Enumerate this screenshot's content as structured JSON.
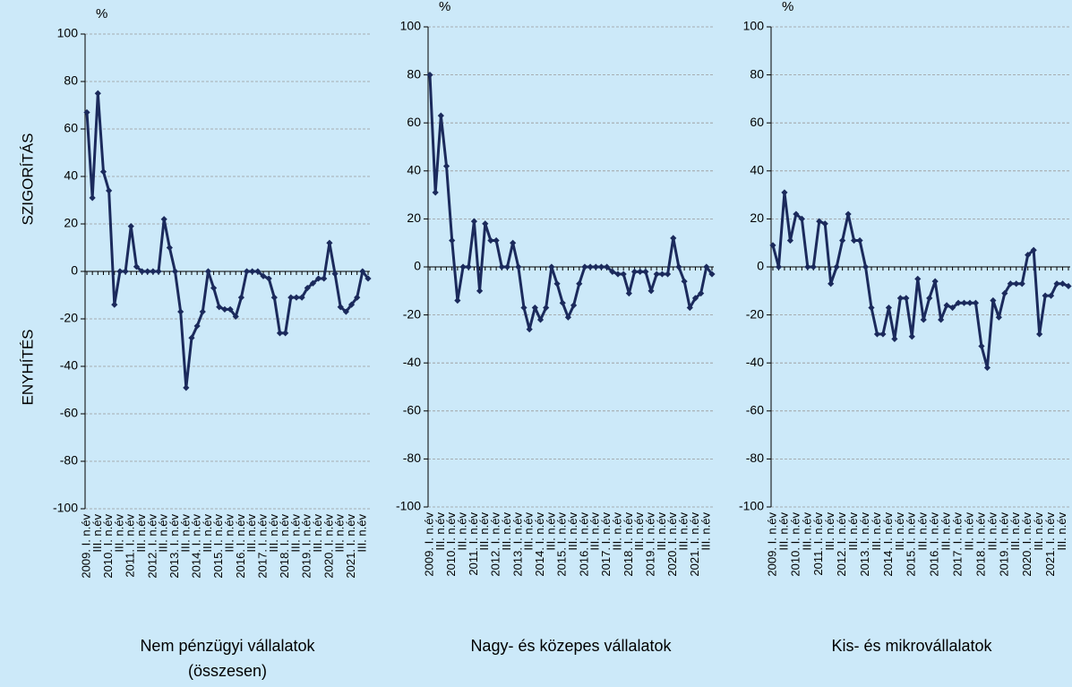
{
  "chart_data": [
    {
      "type": "line",
      "title": [
        "Nem pénzügyi vállalatok",
        "(összesen)"
      ],
      "y_label": "%",
      "annotations": [
        "SZIGORÍTÁS",
        "ENYHÍTÉS"
      ],
      "categories": [
        "2009. I. n.év",
        null,
        "III. n.év",
        null,
        "2010. I. n.év",
        null,
        "III. n.év",
        null,
        "2011. I. n.év",
        null,
        "III. n.év",
        null,
        "2012. I. n.év",
        null,
        "III. n.év",
        null,
        "2013. I. n.év",
        null,
        "III. n.év",
        null,
        "2014. I. n.év",
        null,
        "III. n.év",
        null,
        "2015. I. n.év",
        null,
        "III. n.év",
        null,
        "2016. I. n.év",
        null,
        "III. n.év",
        null,
        "2017. I. n.év",
        null,
        "III. n.év",
        null,
        "2018. I. n.év",
        null,
        "III. n.év",
        null,
        "2019. I. n.év",
        null,
        "III. n.év",
        null,
        "2020. I. n.év",
        null,
        "III. n.év",
        null,
        "2021. I. n.év",
        null,
        "III. n.év",
        null
      ],
      "series": [
        {
          "color": "#1b2a5c",
          "values": [
            67,
            31,
            75,
            42,
            34,
            -14,
            0,
            0,
            19,
            2,
            0,
            0,
            0,
            0,
            22,
            10,
            0,
            -17,
            -49,
            -28,
            -23,
            -17,
            0,
            -7,
            -15,
            -16,
            -16,
            -19,
            -11,
            0,
            0,
            0,
            -2,
            -3,
            -11,
            -26,
            -26,
            -11,
            -11,
            -11,
            -7,
            -5,
            -3,
            -3,
            12,
            -1,
            -15,
            -17,
            -14,
            -11,
            0,
            -3
          ]
        }
      ],
      "ylim": [
        -100,
        100
      ],
      "yticks": [
        -100,
        -80,
        -60,
        -40,
        -20,
        0,
        20,
        40,
        60,
        80,
        100
      ],
      "grid": true
    },
    {
      "type": "line",
      "title": [
        "Nagy- és közepes vállalatok"
      ],
      "y_label": "%",
      "categories": [
        "2009. I. n.év",
        null,
        "III. n.év",
        null,
        "2010. I. n.év",
        null,
        "III. n.év",
        null,
        "2011. I. n.év",
        null,
        "III. n.év",
        null,
        "2012. I. n.év",
        null,
        "III. n.év",
        null,
        "2013. I. n.év",
        null,
        "III. n.év",
        null,
        "2014. I. n.év",
        null,
        "III. n.év",
        null,
        "2015. I. n.év",
        null,
        "III. n.év",
        null,
        "2016. I. n.év",
        null,
        "III. n.év",
        null,
        "2017. I. n.év",
        null,
        "III. n.év",
        null,
        "2018. I. n.év",
        null,
        "III. n.év",
        null,
        "2019. I. n.év",
        null,
        "III. n.év",
        null,
        "2020. I. n.év",
        null,
        "III. n.év",
        null,
        "2021. I. n.év",
        null,
        "III. n.év",
        null
      ],
      "series": [
        {
          "color": "#1b2a5c",
          "values": [
            80,
            31,
            63,
            42,
            11,
            -14,
            0,
            0,
            19,
            -10,
            18,
            11,
            11,
            0,
            0,
            10,
            0,
            -17,
            -26,
            -17,
            -22,
            -17,
            0,
            -7,
            -15,
            -21,
            -16,
            -7,
            0,
            0,
            0,
            0,
            0,
            -2,
            -3,
            -3,
            -11,
            -2,
            -2,
            -2,
            -10,
            -3,
            -3,
            -3,
            12,
            0,
            -6,
            -17,
            -13,
            -11,
            0,
            -3
          ]
        }
      ],
      "ylim": [
        -100,
        100
      ],
      "yticks": [
        -100,
        -80,
        -60,
        -40,
        -20,
        0,
        20,
        40,
        60,
        80,
        100
      ],
      "grid": true
    },
    {
      "type": "line",
      "title": [
        "Kis- és mikrovállalatok"
      ],
      "y_label": "%",
      "categories": [
        "2009. I. n.év",
        null,
        "III. n.év",
        null,
        "2010. I. n.év",
        null,
        "III. n.év",
        null,
        "2011. I. n.év",
        null,
        "III. n.év",
        null,
        "2012. I. n.év",
        null,
        "III. n.év",
        null,
        "2013. I. n.év",
        null,
        "III. n.év",
        null,
        "2014. I. n.év",
        null,
        "III. n.év",
        null,
        "2015. I. n.év",
        null,
        "III. n.év",
        null,
        "2016. I. n.év",
        null,
        "III. n.év",
        null,
        "2017. I. n.év",
        null,
        "III. n.év",
        null,
        "2018. I. n.év",
        null,
        "III. n.év",
        null,
        "2019. I. n.év",
        null,
        "III. n.év",
        null,
        "2020. I. n.év",
        null,
        "III. n.év",
        null,
        "2021. I. n.év",
        null,
        "III. n.év",
        null
      ],
      "series": [
        {
          "color": "#1b2a5c",
          "values": [
            9,
            0,
            31,
            11,
            22,
            20,
            0,
            0,
            19,
            18,
            -7,
            0,
            11,
            22,
            11,
            11,
            0,
            -17,
            -28,
            -28,
            -17,
            -30,
            -13,
            -13,
            -29,
            -5,
            -22,
            -13,
            -6,
            -22,
            -16,
            -17,
            -15,
            -15,
            -15,
            -15,
            -33,
            -42,
            -14,
            -21,
            -11,
            -7,
            -7,
            -7,
            5,
            7,
            -28,
            -12,
            -12,
            -7,
            -7,
            -8
          ]
        }
      ],
      "ylim": [
        -100,
        100
      ],
      "yticks": [
        -100,
        -80,
        -60,
        -40,
        -20,
        0,
        20,
        40,
        60,
        80,
        100
      ],
      "grid": true
    }
  ]
}
